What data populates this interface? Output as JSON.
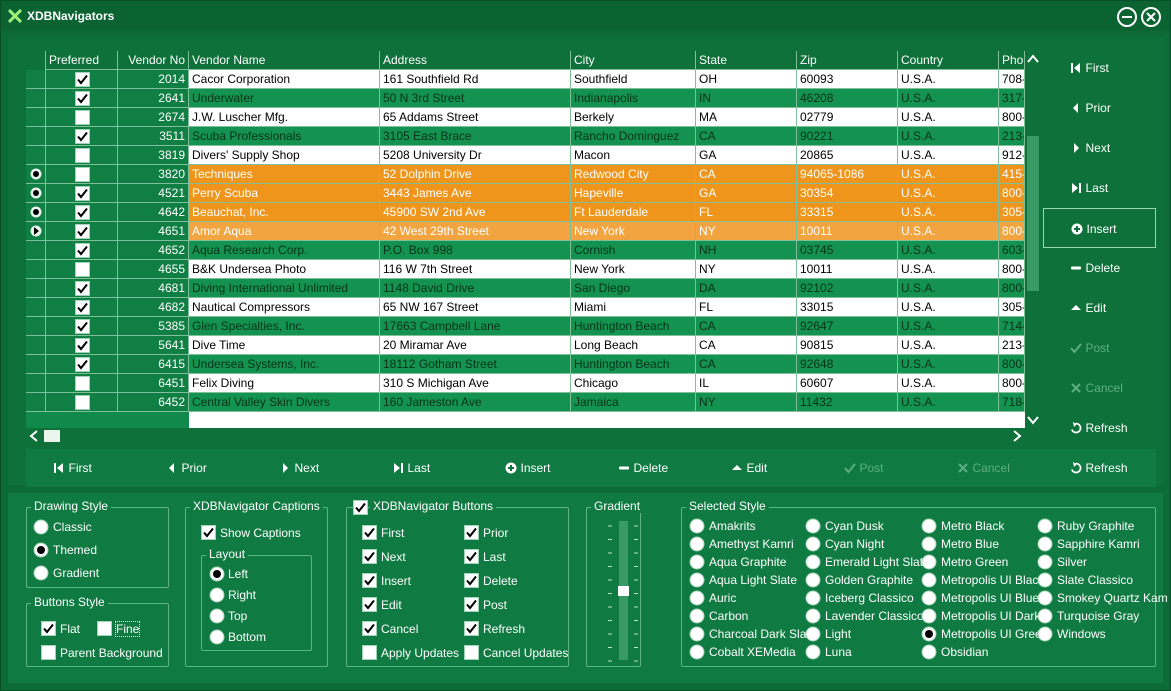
{
  "window": {
    "title": "XDBNavigators"
  },
  "grid": {
    "columns": [
      "Preferred",
      "Vendor No",
      "Vendor Name",
      "Address",
      "City",
      "State",
      "Zip",
      "Country",
      "Phon"
    ],
    "rows": [
      {
        "preferred": true,
        "cells": [
          "2014",
          "Cacor Corporation",
          "161 Southfield Rd",
          "Southfield",
          "OH",
          "60093",
          "U.S.A.",
          "708-"
        ]
      },
      {
        "preferred": true,
        "cells": [
          "2641",
          "Underwater",
          "50 N 3rd Street",
          "Indianapolis",
          "IN",
          "46208",
          "U.S.A.",
          "317-"
        ]
      },
      {
        "preferred": false,
        "cells": [
          "2674",
          "J.W. Luscher Mfg.",
          "65 Addams Street",
          "Berkely",
          "MA",
          "02779",
          "U.S.A.",
          "800-"
        ]
      },
      {
        "preferred": true,
        "cells": [
          "3511",
          "Scuba Professionals",
          "3105 East Brace",
          "Rancho Dominguez",
          "CA",
          "90221",
          "U.S.A.",
          "213-"
        ]
      },
      {
        "preferred": false,
        "cells": [
          "3819",
          "Divers'  Supply Shop",
          "5208 University Dr",
          "Macon",
          "GA",
          "20865",
          "U.S.A.",
          "912-"
        ]
      },
      {
        "preferred": false,
        "cells": [
          "3820",
          "Techniques",
          "52 Dolphin Drive",
          "Redwood City",
          "CA",
          "94065-1086",
          "U.S.A.",
          "415-"
        ]
      },
      {
        "preferred": true,
        "cells": [
          "4521",
          "Perry Scuba",
          "3443 James Ave",
          "Hapeville",
          "GA",
          "30354",
          "U.S.A.",
          "800-"
        ]
      },
      {
        "preferred": true,
        "cells": [
          "4642",
          "Beauchat, Inc.",
          "45900 SW 2nd Ave",
          "Ft Lauderdale",
          "FL",
          "33315",
          "U.S.A.",
          "305-"
        ]
      },
      {
        "preferred": true,
        "cells": [
          "4651",
          "Amor Aqua",
          "42 West 29th Street",
          "New York",
          "NY",
          "10011",
          "U.S.A.",
          "800-"
        ]
      },
      {
        "preferred": true,
        "cells": [
          "4652",
          "Aqua Research Corp.",
          "P.O. Box 998",
          "Cornish",
          "NH",
          "03745",
          "U.S.A.",
          "603-"
        ]
      },
      {
        "preferred": false,
        "cells": [
          "4655",
          "B&K Undersea Photo",
          "116 W 7th Street",
          "New York",
          "NY",
          "10011",
          "U.S.A.",
          "800-"
        ]
      },
      {
        "preferred": true,
        "cells": [
          "4681",
          "Diving International Unlimited",
          "1148 David Drive",
          "San Diego",
          "DA",
          "92102",
          "U.S.A.",
          "800-"
        ]
      },
      {
        "preferred": true,
        "cells": [
          "4682",
          "Nautical Compressors",
          "65 NW 167 Street",
          "Miami",
          "FL",
          "33015",
          "U.S.A.",
          "305-"
        ]
      },
      {
        "preferred": true,
        "cells": [
          "5385",
          "Glen Specialties, Inc.",
          "17663 Campbell Lane",
          "Huntington Beach",
          "CA",
          "92647",
          "U.S.A.",
          "714-"
        ]
      },
      {
        "preferred": true,
        "cells": [
          "5641",
          "Dive Time",
          "20 Miramar Ave",
          "Long Beach",
          "CA",
          "90815",
          "U.S.A.",
          "213-"
        ]
      },
      {
        "preferred": true,
        "cells": [
          "6415",
          "Undersea Systems, Inc.",
          "18112 Gotham Street",
          "Huntington Beach",
          "CA",
          "92648",
          "U.S.A.",
          "800-"
        ]
      },
      {
        "preferred": false,
        "cells": [
          "6451",
          "Felix Diving",
          "310 S Michigan Ave",
          "Chicago",
          "IL",
          "60607",
          "U.S.A.",
          "800-"
        ]
      },
      {
        "preferred": false,
        "cells": [
          "6452",
          "Central Valley Skin Divers",
          "160 Jameston Ave",
          "Jamaica",
          "NY",
          "11432",
          "U.S.A.",
          "718-"
        ]
      }
    ],
    "selected_rows": [
      5,
      6,
      7
    ],
    "current_row": 8
  },
  "side_navigator": {
    "buttons": [
      {
        "caption": "First",
        "enabled": true
      },
      {
        "caption": "Prior",
        "enabled": true
      },
      {
        "caption": "Next",
        "enabled": true
      },
      {
        "caption": "Last",
        "enabled": true
      },
      {
        "caption": "Insert",
        "enabled": true,
        "focused": true
      },
      {
        "caption": "Delete",
        "enabled": true
      },
      {
        "caption": "Edit",
        "enabled": true
      },
      {
        "caption": "Post",
        "enabled": false
      },
      {
        "caption": "Cancel",
        "enabled": false
      },
      {
        "caption": "Refresh",
        "enabled": true
      }
    ]
  },
  "bottom_navigator": {
    "buttons": [
      {
        "caption": "First",
        "enabled": true
      },
      {
        "caption": "Prior",
        "enabled": true
      },
      {
        "caption": "Next",
        "enabled": true
      },
      {
        "caption": "Last",
        "enabled": true
      },
      {
        "caption": "Insert",
        "enabled": true
      },
      {
        "caption": "Delete",
        "enabled": true
      },
      {
        "caption": "Edit",
        "enabled": true
      },
      {
        "caption": "Post",
        "enabled": false
      },
      {
        "caption": "Cancel",
        "enabled": false
      },
      {
        "caption": "Refresh",
        "enabled": true
      }
    ]
  },
  "drawing_style": {
    "title": "Drawing Style",
    "options": [
      "Classic",
      "Themed",
      "Gradient"
    ],
    "selected": 1
  },
  "buttons_style": {
    "title": "Buttons Style",
    "options": [
      {
        "label": "Flat",
        "checked": true
      },
      {
        "label": "Fine",
        "checked": false
      },
      {
        "label": "Parent Background",
        "checked": false
      }
    ]
  },
  "captions": {
    "title": "XDBNavigator Captions",
    "show_captions": {
      "label": "Show Captions",
      "checked": true
    },
    "layout": {
      "title": "Layout",
      "options": [
        "Left",
        "Right",
        "Top",
        "Bottom"
      ],
      "selected": 0
    }
  },
  "nav_buttons": {
    "title": "XDBNavigator Buttons",
    "checked": true,
    "options": [
      {
        "label": "First",
        "checked": true
      },
      {
        "label": "Prior",
        "checked": true
      },
      {
        "label": "Next",
        "checked": true
      },
      {
        "label": "Last",
        "checked": true
      },
      {
        "label": "Insert",
        "checked": true
      },
      {
        "label": "Delete",
        "checked": true
      },
      {
        "label": "Edit",
        "checked": true
      },
      {
        "label": "Post",
        "checked": true
      },
      {
        "label": "Cancel",
        "checked": true
      },
      {
        "label": "Refresh",
        "checked": true
      },
      {
        "label": "Apply Updates",
        "checked": false
      },
      {
        "label": "Cancel Updates",
        "checked": false
      }
    ]
  },
  "gradient": {
    "title": "Gradient"
  },
  "selected_style": {
    "title": "Selected Style",
    "options": [
      "Amakrits",
      "Amethyst Kamri",
      "Aqua Graphite",
      "Aqua Light Slate",
      "Auric",
      "Carbon",
      "Charcoal Dark Slate",
      "Cobalt XEMedia",
      "Cyan Dusk",
      "Cyan Night",
      "Emerald Light Slate",
      "Golden Graphite",
      "Iceberg Classico",
      "Lavender Classico",
      "Light",
      "Luna",
      "Metro Black",
      "Metro Blue",
      "Metro Green",
      "Metropolis UI Black",
      "Metropolis UI Blue",
      "Metropolis UI Dark",
      "Metropolis UI Green",
      "Obsidian",
      "Ruby Graphite",
      "Sapphire Kamri",
      "Silver",
      "Slate Classico",
      "Smokey Quartz Kam",
      "Turquoise Gray",
      "Windows"
    ],
    "selected": 22
  }
}
